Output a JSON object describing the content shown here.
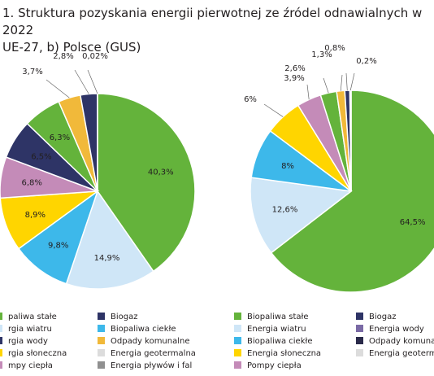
{
  "figure": {
    "title_line1": "1. Struktura pozyskania energii pierwotnej ze źródel odnawialnych w 2022",
    "title_line2": "UE-27, b) Polsce (GUS)"
  },
  "colors": {
    "Biopaliwa stałe": "#64b33b",
    "Energia wiatru": "#cfe6f7",
    "Biopaliwa ciekłe": "#3db8ea",
    "Energia słoneczna": "#ffd500",
    "Pompy ciepła": "#c48bb8",
    "Odpady komunalne": "#f1b93a",
    "Biogaz": "#2e3466",
    "Energia wody": "#2e3466",
    "Energia geotermalna": "#dcdcdc",
    "Energia pływów i fal": "#909090",
    "Odpady komunalne (PL)": "#2a2a4a"
  },
  "chart_data": [
    {
      "type": "pie",
      "chart": "a",
      "slices": [
        {
          "label": "Biopaliwa stałe",
          "value": 40.3,
          "display": "40,3%"
        },
        {
          "label": "Energia wiatru",
          "value": 14.9,
          "display": "14,9%"
        },
        {
          "label": "Biopaliwa ciekłe",
          "value": 9.8,
          "display": "9,8%"
        },
        {
          "label": "Energia słoneczna",
          "value": 8.9,
          "display": "8,9%"
        },
        {
          "label": "Pompy ciepła",
          "value": 6.8,
          "display": "6,8%"
        },
        {
          "label": "Energia wody",
          "value": 6.5,
          "display": "6,5%"
        },
        {
          "label": "Biopaliwa stałe",
          "value": 6.3,
          "display": "6,3%"
        },
        {
          "label": "Odpady komunalne",
          "value": 3.7,
          "display": "3,7%"
        },
        {
          "label": "Biogaz",
          "value": 2.8,
          "display": "2,8%"
        },
        {
          "label": "Energia pływów i fal",
          "value": 0.02,
          "display": "0,02%"
        }
      ],
      "legend": [
        [
          "pali​wa stałe",
          "Biogaz"
        ],
        [
          "rgia wiatru",
          "Biopaliwa ciekłe"
        ],
        [
          "rgia wody",
          "Odpady komunalne"
        ],
        [
          "rgia słoneczna",
          "Energia geotermalna"
        ],
        [
          "mpy ciepła",
          "Energia pływów i fal"
        ]
      ]
    },
    {
      "type": "pie",
      "chart": "b",
      "slices": [
        {
          "label": "Biopaliwa stałe",
          "value": 64.5,
          "display": "64,5%"
        },
        {
          "label": "Energia wiatru",
          "value": 12.6,
          "display": "12,6%"
        },
        {
          "label": "Biopaliwa ciekłe",
          "value": 8.0,
          "display": "8%"
        },
        {
          "label": "Energia słoneczna",
          "value": 6.0,
          "display": "6%"
        },
        {
          "label": "Pompy ciepła",
          "value": 3.9,
          "display": "3,9%"
        },
        {
          "label": "Biogaz",
          "value": 2.6,
          "display": "2,6%"
        },
        {
          "label": "Odpady komunalne",
          "value": 1.3,
          "display": "1,3%"
        },
        {
          "label": "Energia wody",
          "value": 0.8,
          "display": "0,8%"
        },
        {
          "label": "Energia geotermalna",
          "value": 0.2,
          "display": "0,2%"
        }
      ],
      "legend": [
        [
          "Biopaliwa stałe",
          "Biogaz"
        ],
        [
          "Energia wiatru",
          "Energia wody"
        ],
        [
          "Biopaliwa ciekłe",
          "Odpady komunalne"
        ],
        [
          "Energia słoneczna",
          "Energia geotermalna"
        ],
        [
          "Pompy ciepła",
          ""
        ]
      ]
    }
  ]
}
